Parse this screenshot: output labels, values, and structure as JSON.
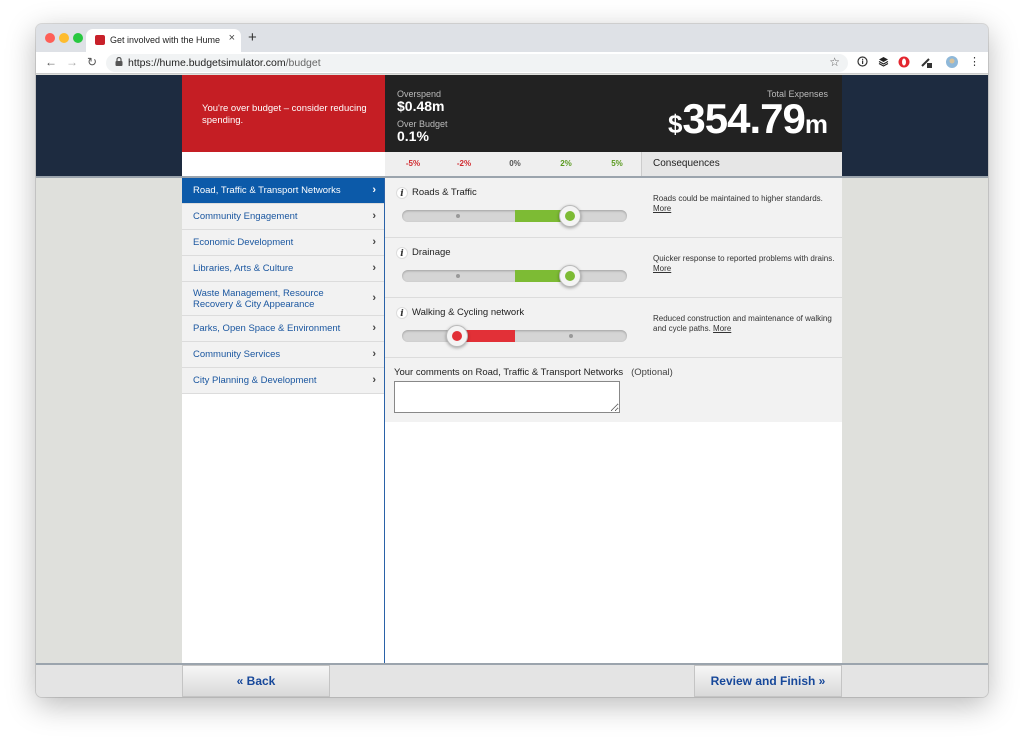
{
  "browser": {
    "tab_title": "Get involved with the Hume Ci",
    "tab_close": "×",
    "new_tab": "+",
    "url_host": "https://hume.budgetsimulator.com",
    "url_path": "/budget",
    "back": "←",
    "forward": "→",
    "reload": "↻",
    "lock": "🔒",
    "bookmark": "☆",
    "menu": "⋮"
  },
  "header": {
    "warning": "You're over budget – consider reducing spending.",
    "overspend_label": "Overspend",
    "overspend_value": "$0.48m",
    "over_budget_label": "Over Budget",
    "over_budget_value": "0.1%",
    "total_label": "Total Expenses",
    "total_currency": "$",
    "total_number": "354.79",
    "total_unit": "m"
  },
  "scale": {
    "ticks": [
      "-5%",
      "-2%",
      "0%",
      "2%",
      "5%"
    ],
    "consequences_label": "Consequences"
  },
  "sidebar": {
    "items": [
      {
        "label": "Road, Traffic & Transport Networks"
      },
      {
        "label": "Community Engagement"
      },
      {
        "label": "Economic Development"
      },
      {
        "label": "Libraries, Arts & Culture"
      },
      {
        "label": "Waste Management, Resource Recovery & City Appearance"
      },
      {
        "label": "Parks, Open Space & Environment"
      },
      {
        "label": "Community Services"
      },
      {
        "label": "City Planning & Development"
      }
    ],
    "chevron": "›"
  },
  "services": [
    {
      "name": "Roads & Traffic",
      "consequence": "Roads could be maintained to higher standards.",
      "more": "More",
      "level_percent": 5,
      "status": "increase"
    },
    {
      "name": "Drainage",
      "consequence": "Quicker response to reported problems with drains.",
      "more": "More",
      "level_percent": 5,
      "status": "increase"
    },
    {
      "name": "Walking & Cycling network",
      "consequence": "Reduced construction and maintenance of walking and cycle paths.",
      "more": "More",
      "level_percent": -5,
      "status": "decrease"
    }
  ],
  "info_glyph": "i",
  "comments": {
    "label": "Your comments on Road, Traffic & Transport Networks",
    "optional": "(Optional)",
    "value": ""
  },
  "footer": {
    "back": "«  Back",
    "finish": "Review and Finish  »"
  },
  "colors": {
    "over_budget_red": "#c51e24",
    "increase_green": "#7dbb34",
    "decrease_red": "#e23037",
    "active_nav": "#0c5aa9",
    "header_navy": "#1d2b40"
  }
}
